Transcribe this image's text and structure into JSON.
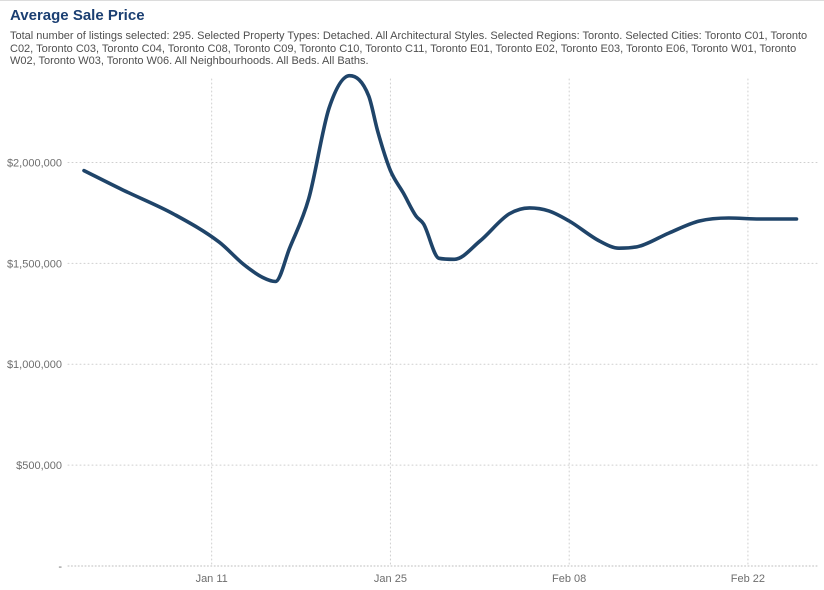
{
  "page": {
    "title": "Average Sale Price",
    "subtitle": "Total number of listings selected: 295. Selected Property Types: Detached. All Architectural Styles. Selected Regions: Toronto. Selected Cities: Toronto C01, Toronto C02, Toronto C03, Toronto C04, Toronto C08, Toronto C09, Toronto C10, Toronto C11, Toronto E01, Toronto E02, Toronto E03, Toronto E06, Toronto W01, Toronto W02, Toronto W03, Toronto W06. All Neighbourhoods. All Beds. All Baths."
  },
  "colors": {
    "line": "#1f4469",
    "title_text": "#1b3f72",
    "subtitle_text": "#4f4f4f",
    "tick_text": "#6e6e6e",
    "gridline": "#cfcfcf"
  },
  "chart_data": {
    "type": "line",
    "title": "Average Sale Price",
    "xlabel": "",
    "ylabel": "",
    "legend": "none",
    "grid": "dotted",
    "curve_style": "smooth",
    "x_axis": {
      "start_date_label": "Jan 01",
      "tick_labels": [
        "Jan 11",
        "Jan 25",
        "Feb 08",
        "Feb 22"
      ],
      "tick_days_from_start": [
        10,
        24,
        38,
        52
      ],
      "range_days": [
        0,
        57.5
      ]
    },
    "y_axis": {
      "tick_labels": [
        "$2,000,000",
        "$1,500,000",
        "$1,000,000",
        "$500,000",
        "-"
      ],
      "tick_values": [
        2000000,
        1500000,
        1000000,
        500000,
        0
      ],
      "range": [
        0,
        2460000
      ]
    },
    "series": [
      {
        "name": "Average Sale Price",
        "color": "#1f4469",
        "weekly_points": {
          "dates": [
            "Jan 01",
            "Jan 08",
            "Jan 15",
            "Jan 22",
            "Jan 29",
            "Feb 05",
            "Feb 12",
            "Feb 19",
            "Feb 26"
          ],
          "days": [
            0,
            7,
            14,
            21,
            28,
            35,
            42,
            49,
            56
          ],
          "values": [
            1960000,
            1745000,
            1420000,
            2430000,
            1520000,
            1775000,
            1575000,
            1710000,
            1720000
          ]
        },
        "curve_samples": {
          "days": [
            0,
            3,
            7,
            10.6,
            12.5,
            14,
            15,
            16.1,
            17.6,
            19.2,
            20.8,
            22.3,
            23,
            24,
            25,
            26,
            26.6,
            27.8,
            29,
            31,
            33.3,
            34.9,
            36.4,
            38,
            40.4,
            41.9,
            43.5,
            45.8,
            48.2,
            50.5,
            52.9,
            55.8
          ],
          "values": [
            1960000,
            1865000,
            1745000,
            1605000,
            1495000,
            1430000,
            1410000,
            1575000,
            1820000,
            2270000,
            2430000,
            2330000,
            2155000,
            1960000,
            1850000,
            1735000,
            1695000,
            1525000,
            1520000,
            1610000,
            1745000,
            1775000,
            1760000,
            1710000,
            1610000,
            1575000,
            1585000,
            1650000,
            1710000,
            1725000,
            1720000,
            1720000
          ]
        }
      }
    ]
  }
}
